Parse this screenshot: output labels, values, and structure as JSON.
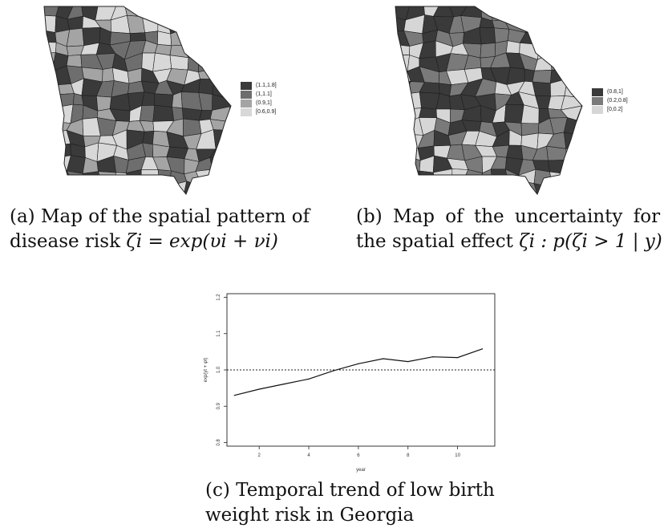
{
  "panel_a": {
    "legend_title": "",
    "legend": [
      {
        "label": "(1.1,1.8]",
        "color": "#3a3a3a"
      },
      {
        "label": "(1,1.1]",
        "color": "#6e6e6e"
      },
      {
        "label": "(0.9,1]",
        "color": "#a4a4a4"
      },
      {
        "label": "[0.6,0.9]",
        "color": "#d8d8d8"
      }
    ],
    "caption_line1": "(a) Map of the spatial pattern of",
    "caption_line2_pre": "disease risk ",
    "caption_line2_math": "ζi = exp(υi + νi)"
  },
  "panel_b": {
    "legend": [
      {
        "label": "(0.8,1]",
        "color": "#3a3a3a"
      },
      {
        "label": "(0.2,0.8]",
        "color": "#7a7a7a"
      },
      {
        "label": "[0,0.2]",
        "color": "#d6d6d6"
      }
    ],
    "caption_line1": "(b) Map of the uncertainty for",
    "caption_line2_pre": "the spatial effect ",
    "caption_line2_math": "ζi : p(ζi > 1 | y)"
  },
  "panel_c": {
    "caption_line1": "(c) Temporal trend of low birth",
    "caption_line2": "weight risk in Georgia"
  },
  "chart_data": {
    "type": "line",
    "xlabel": "year",
    "ylabel": "exp(γt + φt)",
    "xlim": [
      0.7,
      11.5
    ],
    "ylim": [
      0.79,
      1.21
    ],
    "x_ticks": [
      2,
      4,
      6,
      8,
      10
    ],
    "y_ticks": [
      0.8,
      0.9,
      1.0,
      1.1,
      1.2
    ],
    "y_tick_labels": [
      "0.8",
      "0.9",
      "1.0",
      "1.1",
      "1.2"
    ],
    "reference_line": 1.0,
    "grid": false,
    "x": [
      1,
      2,
      3,
      4,
      5,
      6,
      7,
      8,
      9,
      10,
      11
    ],
    "values": [
      0.93,
      0.947,
      0.961,
      0.975,
      0.998,
      1.017,
      1.031,
      1.023,
      1.036,
      1.034,
      1.058
    ]
  }
}
